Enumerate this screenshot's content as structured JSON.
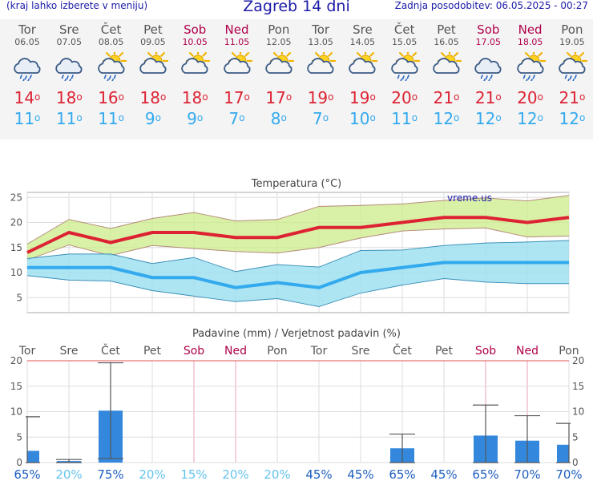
{
  "header": {
    "left": "(kraj lahko izberete v meniju)",
    "title": "Zagreb 14 dni",
    "right": "Zadnja posodobitev: 06.05.2025 - 00:27"
  },
  "days": [
    {
      "name": "Tor",
      "date": "06.05",
      "weekend": false,
      "icon": "rain-cloud-icon",
      "tmax": "14",
      "tmin": "11"
    },
    {
      "name": "Sre",
      "date": "07.05",
      "weekend": false,
      "icon": "rain-cloud-icon",
      "tmax": "18",
      "tmin": "11"
    },
    {
      "name": "Čet",
      "date": "08.05",
      "weekend": false,
      "icon": "sun-rain-icon",
      "tmax": "16",
      "tmin": "11"
    },
    {
      "name": "Pet",
      "date": "09.05",
      "weekend": false,
      "icon": "sun-cloud-icon",
      "tmax": "18",
      "tmin": "9"
    },
    {
      "name": "Sob",
      "date": "10.05",
      "weekend": true,
      "icon": "sun-cloud-icon",
      "tmax": "18",
      "tmin": "9"
    },
    {
      "name": "Ned",
      "date": "11.05",
      "weekend": true,
      "icon": "sun-cloud-icon",
      "tmax": "17",
      "tmin": "7"
    },
    {
      "name": "Pon",
      "date": "12.05",
      "weekend": false,
      "icon": "sun-cloud-icon",
      "tmax": "17",
      "tmin": "8"
    },
    {
      "name": "Tor",
      "date": "13.05",
      "weekend": false,
      "icon": "sun-cloud-icon",
      "tmax": "19",
      "tmin": "7"
    },
    {
      "name": "Sre",
      "date": "14.05",
      "weekend": false,
      "icon": "sun-cloud-icon",
      "tmax": "19",
      "tmin": "10"
    },
    {
      "name": "Čet",
      "date": "15.05",
      "weekend": false,
      "icon": "sun-rain-icon",
      "tmax": "20",
      "tmin": "11"
    },
    {
      "name": "Pet",
      "date": "16.05",
      "weekend": false,
      "icon": "sun-cloud-icon",
      "tmax": "21",
      "tmin": "12"
    },
    {
      "name": "Sob",
      "date": "17.05",
      "weekend": true,
      "icon": "rain-cloud-icon",
      "tmax": "21",
      "tmin": "12"
    },
    {
      "name": "Ned",
      "date": "18.05",
      "weekend": true,
      "icon": "sun-rain-icon",
      "tmax": "20",
      "tmin": "12"
    },
    {
      "name": "Pon",
      "date": "19.05",
      "weekend": false,
      "icon": "sun-rain-icon",
      "tmax": "21",
      "tmin": "12"
    }
  ],
  "degree_symbol": "o",
  "colors": {
    "max": "#dd2233",
    "min": "#33aaee",
    "weekend": "#b0004a",
    "bar": "#3388dd",
    "band_max": "#cceb8a",
    "band_min": "#9fe0f0"
  },
  "chart_data": [
    {
      "type": "line",
      "title": "Temperatura (°C)",
      "watermark": "vreme.us",
      "ylim": [
        2,
        26
      ],
      "yticks": [
        5,
        10,
        15,
        20,
        25
      ],
      "grid": true,
      "x": [
        0,
        1,
        2,
        3,
        4,
        5,
        6,
        7,
        8,
        9,
        10,
        11,
        12,
        13
      ],
      "series": [
        {
          "name": "max",
          "values": [
            14,
            18,
            16,
            18,
            18,
            17,
            17,
            19,
            19,
            20,
            21,
            21,
            20,
            21
          ],
          "band_upper": [
            15.7,
            20.6,
            18.8,
            20.8,
            22.0,
            20.3,
            20.6,
            23.2,
            23.4,
            23.7,
            24.4,
            24.9,
            24.3,
            25.4
          ],
          "band_lower": [
            12.5,
            15.5,
            13.4,
            15.4,
            14.8,
            14.2,
            13.9,
            15.0,
            16.9,
            18.3,
            18.7,
            18.9,
            17.1,
            17.3
          ]
        },
        {
          "name": "min",
          "values": [
            11,
            11,
            11,
            9,
            9,
            7,
            8,
            7,
            10,
            11,
            12,
            12,
            12,
            12
          ],
          "band_upper": [
            12.8,
            13.7,
            13.7,
            11.8,
            13.0,
            10.2,
            11.6,
            11.1,
            14.4,
            14.5,
            15.4,
            15.9,
            16.1,
            16.4
          ],
          "band_lower": [
            9.4,
            8.5,
            8.3,
            6.4,
            5.3,
            4.2,
            4.8,
            3.2,
            5.9,
            7.5,
            8.8,
            8.1,
            7.8,
            7.8
          ]
        }
      ]
    },
    {
      "type": "bar",
      "title": "Padavine (mm) / Verjetnost padavin (%)",
      "ylim": [
        0,
        20
      ],
      "yticks": [
        0,
        5,
        10,
        15,
        20
      ],
      "categories": [
        "Tor",
        "Sre",
        "Čet",
        "Pet",
        "Sob",
        "Ned",
        "Pon",
        "Tor",
        "Sre",
        "Čet",
        "Pet",
        "Sob",
        "Ned",
        "Pon"
      ],
      "weekend": [
        false,
        false,
        false,
        false,
        true,
        true,
        false,
        false,
        false,
        false,
        false,
        true,
        true,
        false
      ],
      "values": [
        2.3,
        0.3,
        10.2,
        0,
        0,
        0,
        0,
        0,
        0,
        2.8,
        0,
        5.3,
        4.3,
        3.5
      ],
      "err_high": [
        9,
        0.6,
        19.6,
        0,
        0,
        0,
        0,
        0,
        0,
        5.6,
        0,
        11.3,
        9.2,
        7.7
      ],
      "err_low": [
        0,
        0,
        0.8,
        0,
        0,
        0,
        0,
        0,
        0,
        0,
        0,
        0,
        0,
        0
      ],
      "probability": [
        "65%",
        "20%",
        "75%",
        "20%",
        "15%",
        "20%",
        "20%",
        "45%",
        "45%",
        "65%",
        "45%",
        "65%",
        "70%",
        "70%"
      ]
    }
  ]
}
